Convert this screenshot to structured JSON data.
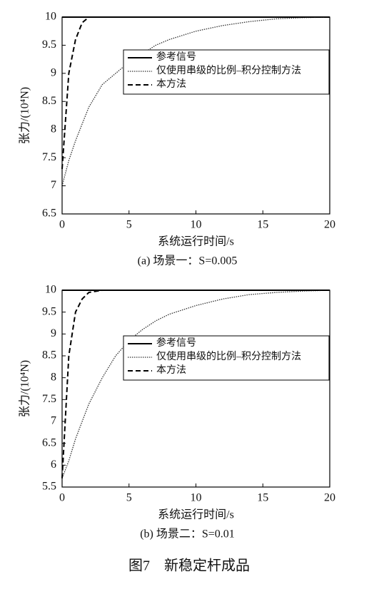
{
  "chart_data": [
    {
      "type": "line",
      "subtitle": "(a) 场景一：S=0.005",
      "x_label": "系统运行时间/s",
      "y_label": "张力/(10⁴N)",
      "xlim": [
        0,
        20
      ],
      "xticks": [
        0,
        5,
        10,
        15,
        20
      ],
      "ylim": [
        6.5,
        10
      ],
      "yticks": [
        6.5,
        7,
        7.5,
        8,
        8.5,
        9,
        9.5,
        10
      ],
      "x": [
        0,
        0.5,
        1,
        1.5,
        2,
        3,
        4,
        5,
        6,
        7,
        8,
        10,
        12,
        14,
        16,
        18,
        20
      ],
      "series": [
        {
          "name": "参考信号",
          "color": "#000000",
          "dash": "solid",
          "values": [
            10,
            10,
            10,
            10,
            10,
            10,
            10,
            10,
            10,
            10,
            10,
            10,
            10,
            10,
            10,
            10,
            10
          ]
        },
        {
          "name": "仅使用串级的比例–积分控制方法",
          "color": "#333333",
          "dash": "dotted",
          "values": [
            7.0,
            7.45,
            7.8,
            8.1,
            8.4,
            8.8,
            9.0,
            9.2,
            9.35,
            9.5,
            9.6,
            9.75,
            9.85,
            9.92,
            9.97,
            9.99,
            10
          ]
        },
        {
          "name": "本方法",
          "color": "#000000",
          "dash": "dashed",
          "values": [
            7.3,
            9.0,
            9.6,
            9.9,
            10,
            10,
            10,
            10,
            10,
            10,
            10,
            10,
            10,
            10,
            10,
            10,
            10
          ]
        }
      ]
    },
    {
      "type": "line",
      "subtitle": "(b) 场景二：S=0.01",
      "x_label": "系统运行时间/s",
      "y_label": "张力/(10⁴N)",
      "xlim": [
        0,
        20
      ],
      "xticks": [
        0,
        5,
        10,
        15,
        20
      ],
      "ylim": [
        5.5,
        10
      ],
      "yticks": [
        5.5,
        6,
        6.5,
        7,
        7.5,
        8,
        8.5,
        9,
        9.5,
        10
      ],
      "x": [
        0,
        0.5,
        1,
        1.5,
        2,
        3,
        4,
        5,
        6,
        7,
        8,
        10,
        12,
        14,
        16,
        18,
        20
      ],
      "series": [
        {
          "name": "参考信号",
          "color": "#000000",
          "dash": "solid",
          "values": [
            10,
            10,
            10,
            10,
            10,
            10,
            10,
            10,
            10,
            10,
            10,
            10,
            10,
            10,
            10,
            10,
            10
          ]
        },
        {
          "name": "仅使用串级的比例–积分控制方法",
          "color": "#333333",
          "dash": "dotted",
          "values": [
            5.7,
            6.1,
            6.6,
            7.0,
            7.4,
            8.0,
            8.5,
            8.85,
            9.1,
            9.3,
            9.45,
            9.65,
            9.8,
            9.9,
            9.95,
            9.98,
            10
          ]
        },
        {
          "name": "本方法",
          "color": "#000000",
          "dash": "dashed",
          "values": [
            5.7,
            8.5,
            9.5,
            9.8,
            9.95,
            10,
            10,
            10,
            10,
            10,
            10,
            10,
            10,
            10,
            10,
            10,
            10
          ]
        }
      ]
    }
  ],
  "caption": "图7　新稳定杆成品"
}
